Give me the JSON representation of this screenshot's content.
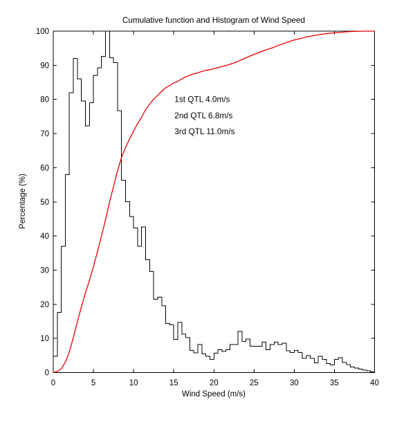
{
  "figure": {
    "background": "#ffffff",
    "axis_color": "#000000"
  },
  "chart_data": {
    "type": "bar",
    "subtype": "histogram-with-cumulative-line",
    "title": "Cumulative function and Histogram of Wind Speed",
    "xlabel": "Wind Speed (m/s)",
    "ylabel": "Percentage (%)",
    "xlim": [
      0,
      40
    ],
    "ylim": [
      0,
      100
    ],
    "x_ticks": [
      0,
      5,
      10,
      15,
      20,
      25,
      30,
      35,
      40
    ],
    "y_ticks": [
      0,
      10,
      20,
      30,
      40,
      50,
      60,
      70,
      80,
      90,
      100
    ],
    "grid": false,
    "legend": "none",
    "bin_width": 0.5,
    "histogram": {
      "name": "Histogram of Wind Speed",
      "color": "#000000",
      "bin_starts": [
        0,
        0.5,
        1,
        1.5,
        2,
        2.5,
        3,
        3.5,
        4,
        4.5,
        5,
        5.5,
        6,
        6.5,
        7,
        7.5,
        8,
        8.5,
        9,
        9.5,
        10,
        10.5,
        11,
        11.5,
        12,
        12.5,
        13,
        13.5,
        14,
        14.5,
        15,
        15.5,
        16,
        16.5,
        17,
        17.5,
        18,
        18.5,
        19,
        19.5,
        20,
        20.5,
        21,
        21.5,
        22,
        22.5,
        23,
        23.5,
        24,
        24.5,
        25,
        25.5,
        26,
        26.5,
        27,
        27.5,
        28,
        28.5,
        29,
        29.5,
        30,
        30.5,
        31,
        31.5,
        32,
        32.5,
        33,
        33.5,
        34,
        34.5,
        35,
        35.5,
        36,
        36.5,
        37,
        37.5,
        38,
        38.5,
        39,
        39.5
      ],
      "values": [
        4.8,
        17.6,
        37,
        58,
        82,
        92,
        86,
        79.5,
        72.2,
        79,
        87,
        89.3,
        92.6,
        100,
        92.2,
        90.8,
        76.7,
        56.3,
        50.1,
        45.7,
        42.3,
        37,
        42.7,
        33,
        29.6,
        21.5,
        22.1,
        19.6,
        14.4,
        14,
        9.7,
        14.7,
        11.2,
        10.2,
        6.5,
        5.8,
        8.2,
        5.5,
        4.8,
        3.9,
        5.7,
        6.7,
        6.2,
        6.7,
        8.2,
        8.2,
        12.1,
        9.1,
        9.8,
        7.7,
        7.7,
        7.7,
        8.9,
        6.7,
        8.2,
        8.9,
        8.2,
        8.6,
        6.4,
        5.9,
        6.5,
        5.9,
        4.2,
        5.0,
        4.2,
        2.8,
        4.8,
        3.8,
        2.6,
        2.2,
        3.8,
        4.4,
        2.9,
        2.3,
        1.6,
        1.3,
        1.0,
        0.7,
        0.5,
        0.25
      ]
    },
    "cumulative": {
      "name": "Cumulative function",
      "color": "#e60000",
      "x": [
        0,
        0.5,
        1,
        1.5,
        2,
        2.5,
        3,
        3.5,
        4,
        4.5,
        5,
        5.5,
        6,
        6.5,
        7,
        7.5,
        8,
        8.5,
        9,
        9.5,
        10,
        10.5,
        11,
        11.5,
        12,
        12.5,
        13,
        13.5,
        14,
        14.5,
        15,
        15.5,
        16,
        16.5,
        17,
        17.5,
        18,
        18.5,
        19,
        19.5,
        20,
        20.5,
        21,
        21.5,
        22,
        22.5,
        23,
        23.5,
        24,
        24.5,
        25,
        25.5,
        26,
        26.5,
        27,
        27.5,
        28,
        28.5,
        29,
        29.5,
        30,
        30.5,
        31,
        31.5,
        32,
        32.5,
        33,
        33.5,
        34,
        34.5,
        35,
        35.5,
        36,
        36.5,
        37,
        37.5,
        38,
        38.5,
        39,
        39.5,
        40
      ],
      "y": [
        0,
        0.3,
        1.1,
        3.0,
        6.0,
        10.2,
        14.8,
        19.2,
        23.3,
        27.0,
        31.0,
        35.4,
        40.0,
        44.7,
        49.8,
        54.5,
        59.1,
        63.0,
        65.9,
        68.4,
        70.7,
        72.9,
        74.8,
        77.0,
        78.6,
        80.1,
        81.2,
        82.4,
        83.4,
        84.1,
        84.8,
        85.3,
        86.0,
        86.6,
        87.1,
        87.5,
        87.8,
        88.2,
        88.5,
        88.7,
        89.0,
        89.3,
        89.6,
        89.9,
        90.3,
        90.7,
        91.1,
        91.7,
        92.2,
        92.7,
        93.2,
        93.6,
        94.1,
        94.5,
        94.9,
        95.3,
        95.8,
        96.2,
        96.6,
        97.0,
        97.4,
        97.7,
        98.0,
        98.3,
        98.5,
        98.7,
        98.9,
        99.1,
        99.25,
        99.4,
        99.5,
        99.6,
        99.7,
        99.8,
        99.87,
        99.92,
        99.95,
        99.97,
        99.99,
        100,
        100
      ]
    },
    "annotations": [
      {
        "text": "1st QTL 4.0m/s",
        "x": 15.1,
        "y": 80.0,
        "color": "#e60000"
      },
      {
        "text": "2nd QTL 6.8m/s",
        "x": 15.1,
        "y": 75.3,
        "color": "#e60000"
      },
      {
        "text": "3rd QTL 11.0m/s",
        "x": 15.1,
        "y": 70.6,
        "color": "#e60000"
      }
    ],
    "quartiles": {
      "q1_mps": 4.0,
      "q2_mps": 6.8,
      "q3_mps": 11.0
    }
  }
}
